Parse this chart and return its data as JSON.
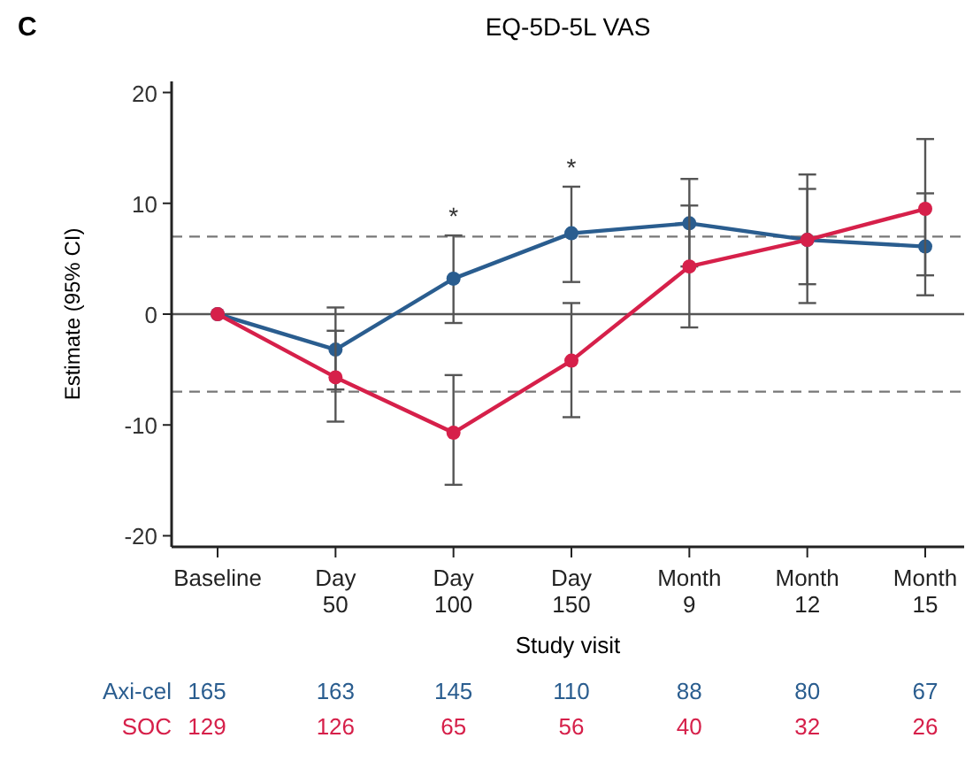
{
  "chart_data": {
    "type": "line",
    "title": "EQ-5D-5L VAS",
    "xlabel": "Study visit",
    "ylabel": "Estimate (95% CI)",
    "categories": [
      "Baseline",
      "Day\n50",
      "Day\n100",
      "Day\n150",
      "Month\n9",
      "Month\n12",
      "Month\n15"
    ],
    "series": [
      {
        "name": "Axi-cel",
        "color": "#2a5d8f",
        "values": [
          0,
          -3.2,
          3.2,
          7.3,
          8.2,
          6.7,
          6.1
        ],
        "errors": [
          null,
          [
            -6.8,
            0.6
          ],
          [
            -0.8,
            7.1
          ],
          [
            2.9,
            11.5
          ],
          [
            4.3,
            12.2
          ],
          [
            2.7,
            11.3
          ],
          [
            1.7,
            10.9
          ]
        ]
      },
      {
        "name": "SOC",
        "color": "#d6204a",
        "values": [
          0,
          -5.7,
          -10.7,
          -4.2,
          4.3,
          6.7,
          9.5
        ],
        "errors": [
          null,
          [
            -9.7,
            -1.5
          ],
          [
            -15.4,
            -5.5
          ],
          [
            -9.3,
            1.0
          ],
          [
            -1.2,
            9.8
          ],
          [
            1.0,
            12.6
          ],
          [
            3.5,
            15.8
          ]
        ]
      }
    ],
    "ylim": [
      -21,
      21
    ],
    "yticks": [
      -20,
      -10,
      0,
      10,
      20
    ],
    "grid": false,
    "marker": "circle",
    "line_style": "solid",
    "ref_lines": [
      {
        "axis": "y",
        "value": 0,
        "color": "#555555",
        "line_style": "solid"
      },
      {
        "axis": "y",
        "value": 7,
        "color": "#777777",
        "line_style": "dashed"
      },
      {
        "axis": "y",
        "value": -7,
        "color": "#777777",
        "line_style": "dashed"
      }
    ],
    "annotations": [
      "C",
      "*",
      "*",
      "165 163 145 110 88 80 67",
      "129 126 65 56 40 32 26"
    ]
  }
}
